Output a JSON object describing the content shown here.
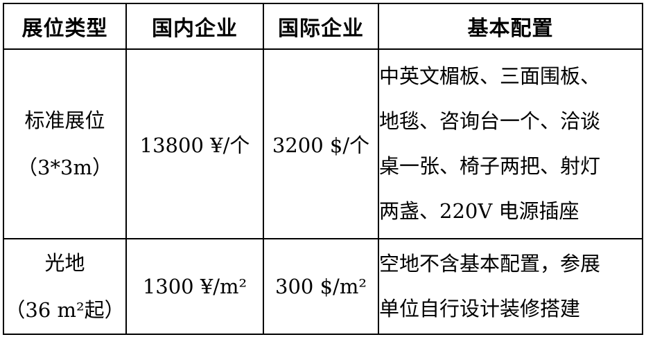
{
  "page": {
    "background_color": "#ffffff",
    "border_color": "#000000",
    "text_color": "#000000"
  },
  "table": {
    "headers": {
      "booth_type": "展位类型",
      "domestic": "国内企业",
      "international": "国际企业",
      "config": "基本配置"
    },
    "rows": [
      {
        "booth_type_line1": "标准展位",
        "booth_type_line2": "（3*3m）",
        "domestic_price": "13800 ¥/个",
        "international_price": "3200 $/个",
        "config_lines": {
          "0": "中英文楣板、三面围板、",
          "1": "地毯、咨询台一个、洽谈",
          "2": "桌一张、椅子两把、射灯",
          "3": "两盏、220V 电源插座"
        }
      },
      {
        "booth_type_line1": "光地",
        "booth_type_line2": "（36 m²起）",
        "domestic_price": "1300 ¥/m²",
        "international_price": "300 $/m²",
        "config_lines": {
          "0": "空地不含基本配置，参展",
          "1": "单位自行设计装修搭建"
        }
      }
    ]
  }
}
